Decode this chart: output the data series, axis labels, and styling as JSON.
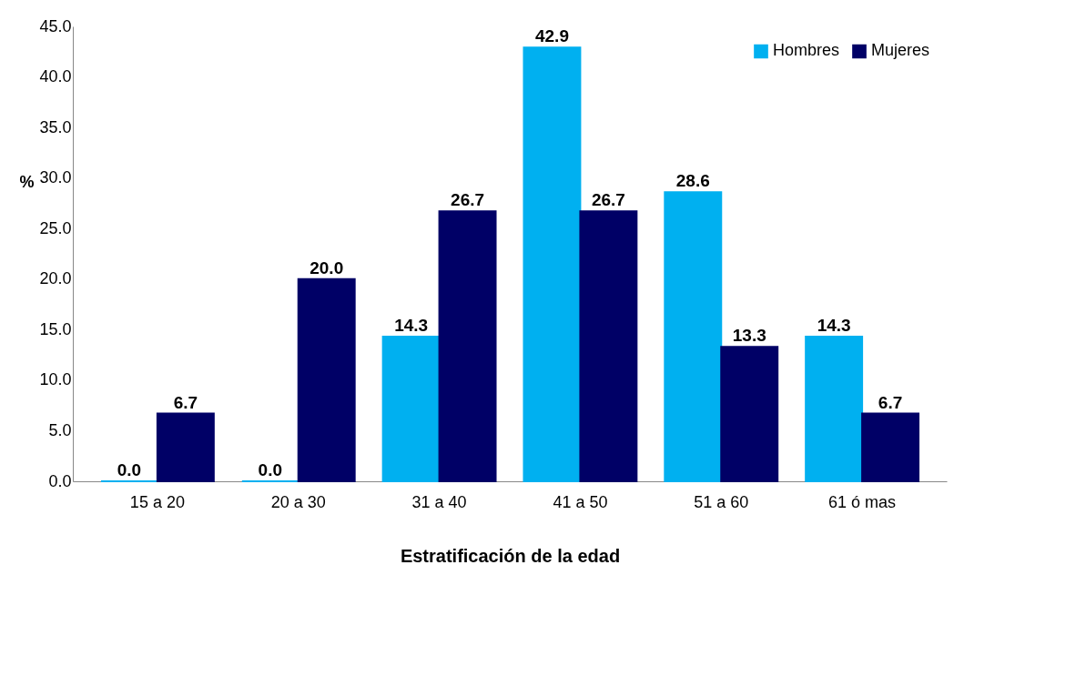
{
  "chart_data": {
    "type": "bar",
    "xlabel": "Estratificación de la edad",
    "ylabel": "%",
    "categories": [
      "15 a 20",
      "20 a 30",
      "31 a 40",
      "41 a 50",
      "51 a 60",
      "61 ó mas"
    ],
    "series": [
      {
        "name": "Hombres",
        "color": "#00b0f0",
        "values": [
          0.0,
          0.0,
          14.3,
          42.9,
          28.6,
          14.3
        ],
        "value_labels": [
          "0.0",
          "0.0",
          "14.3",
          "42.9",
          "28.6",
          "14.3"
        ]
      },
      {
        "name": "Mujeres",
        "color": "#000066",
        "values": [
          6.7,
          20.0,
          26.7,
          26.7,
          13.3,
          6.7
        ],
        "value_labels": [
          "6.7",
          "20.0",
          "26.7",
          "26.7",
          "13.3",
          "6.7"
        ]
      }
    ],
    "ylim": [
      0,
      45
    ],
    "yticks": [
      {
        "value": 0,
        "label": "0.0"
      },
      {
        "value": 5,
        "label": "5.0"
      },
      {
        "value": 10,
        "label": "10.0"
      },
      {
        "value": 15,
        "label": "15.0"
      },
      {
        "value": 20,
        "label": "20.0"
      },
      {
        "value": 25,
        "label": "25.0"
      },
      {
        "value": 30,
        "label": "30.0"
      },
      {
        "value": 35,
        "label": "35.0"
      },
      {
        "value": 40,
        "label": "40.0"
      },
      {
        "value": 45,
        "label": "45.0"
      }
    ],
    "grid": false,
    "legend": "top right"
  }
}
